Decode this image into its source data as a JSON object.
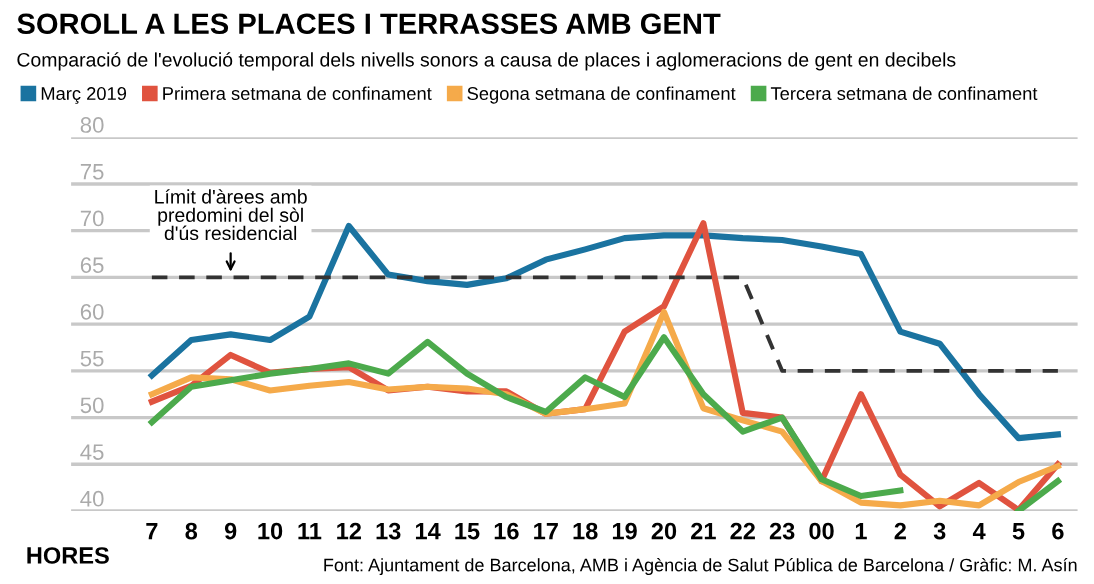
{
  "chart_data": {
    "type": "line",
    "title": "SOROLL A LES PLACES I TERRASSES AMB GENT",
    "subtitle": "Comparació de l'evolució temporal dels nivells sonors a causa de places i aglomeracions de gent en decibels",
    "xlabel": "HORES",
    "categories": [
      "7",
      "8",
      "9",
      "10",
      "11",
      "12",
      "13",
      "14",
      "15",
      "16",
      "17",
      "18",
      "19",
      "20",
      "21",
      "22",
      "23",
      "00",
      "1",
      "2",
      "3",
      "4",
      "5",
      "6"
    ],
    "series": [
      {
        "name": "Març 2019",
        "color": "#1a73a0",
        "values": [
          54.5,
          58.3,
          58.9,
          58.3,
          60.8,
          70.5,
          65.3,
          64.6,
          64.2,
          64.9,
          66.9,
          68.0,
          69.2,
          69.5,
          69.5,
          69.2,
          69.0,
          68.3,
          67.5,
          59.2,
          57.9,
          52.5,
          47.8,
          48.2
        ]
      },
      {
        "name": "Primera setmana de confinament",
        "color": "#e0533f",
        "values": [
          51.7,
          53.4,
          56.7,
          54.8,
          55.2,
          55.4,
          52.9,
          53.3,
          52.8,
          52.8,
          50.4,
          50.9,
          59.2,
          61.9,
          70.8,
          50.5,
          50.0,
          43.2,
          52.5,
          43.9,
          40.5,
          43.0,
          40.1,
          45.0
        ]
      },
      {
        "name": "Segona setmana de confinament",
        "color": "#f5aa4a",
        "values": [
          52.5,
          54.3,
          54.1,
          52.9,
          53.4,
          53.8,
          53.0,
          53.3,
          53.1,
          52.5,
          50.4,
          50.9,
          51.5,
          61.3,
          51.0,
          49.7,
          48.5,
          43.2,
          40.9,
          40.6,
          41.1,
          40.6,
          43.1,
          44.8
        ]
      },
      {
        "name": "Tercera setmana de confinament",
        "color": "#4caa4c",
        "values": [
          49.5,
          53.3,
          54.0,
          54.7,
          55.2,
          55.8,
          54.7,
          58.1,
          54.7,
          52.2,
          50.6,
          54.3,
          52.2,
          58.6,
          52.5,
          48.5,
          50.0,
          43.4,
          41.6,
          42.2,
          null,
          null,
          40.0,
          43.2
        ]
      },
      {
        "color": "#333333",
        "line_style": "dashed",
        "values": [
          65,
          65,
          65,
          65,
          65,
          65,
          65,
          65,
          65,
          65,
          65,
          65,
          65,
          65,
          65,
          65,
          55,
          55,
          55,
          55,
          55,
          55,
          55,
          55
        ]
      }
    ],
    "ylim": [
      40,
      80
    ],
    "yticks": [
      40,
      45,
      50,
      55,
      60,
      65,
      70,
      75,
      80
    ],
    "grid": "y",
    "legend": "top left",
    "annotations": [
      {
        "text": "Límit d'àrees amb\npredomini del sòl\nd'ús residencial",
        "x": "9",
        "y": 65
      },
      "Font: Ajuntament de Barcelona, AMB i Agència de Salut Pública de Barcelona / Gràfic: M. Asín"
    ]
  }
}
